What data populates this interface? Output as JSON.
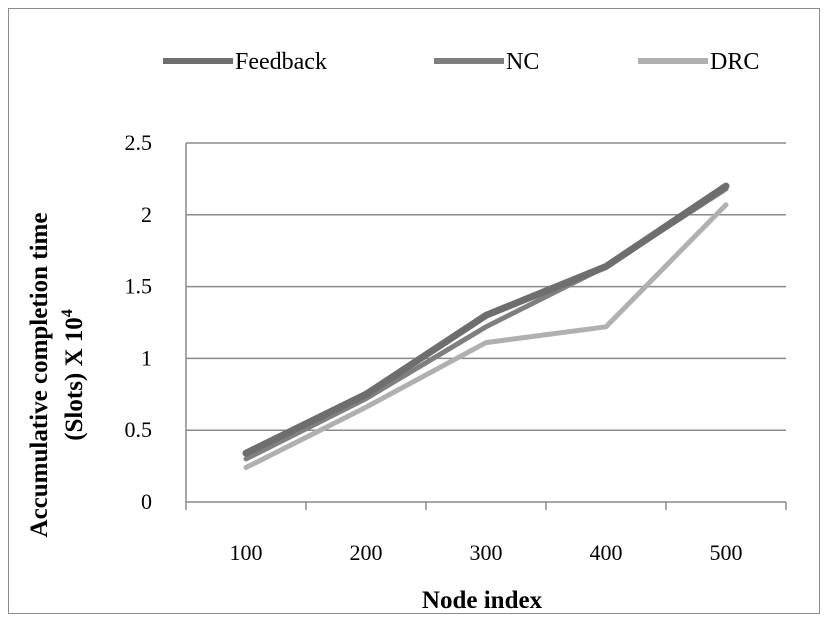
{
  "chart_data": {
    "type": "line",
    "categories": [
      "100",
      "200",
      "300",
      "400",
      "500"
    ],
    "series": [
      {
        "name": "Feedback",
        "values": [
          0.34,
          0.75,
          1.3,
          1.64,
          2.2
        ],
        "color": "#6e6e6e"
      },
      {
        "name": "NC",
        "values": [
          0.3,
          0.72,
          1.22,
          1.64,
          2.18
        ],
        "color": "#7f7f7f"
      },
      {
        "name": "DRC",
        "values": [
          0.24,
          0.66,
          1.11,
          1.22,
          2.07
        ],
        "color": "#b0b0b0"
      }
    ],
    "xlabel": "Node index",
    "ylabel_line1": "Accumulative completion time",
    "ylabel_line2": "(Slots) X 10",
    "ylabel_exponent": "4",
    "ylim": [
      0,
      2.5
    ],
    "yticks": [
      "0",
      "0.5",
      "1",
      "1.5",
      "2",
      "2.5"
    ],
    "grid": true,
    "legend_position": "top"
  }
}
